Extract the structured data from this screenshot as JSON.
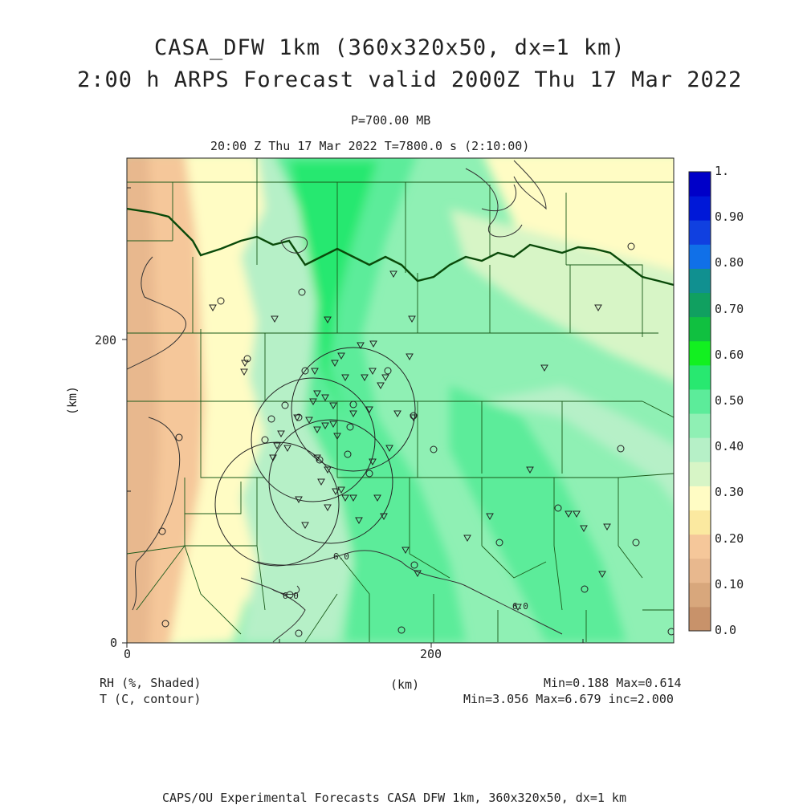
{
  "title_line1": "CASA_DFW 1km (360x320x50, dx=1 km)",
  "title_line2": "2:00 h ARPS Forecast valid 2000Z Thu 17 Mar 2022",
  "level": "P=700.00 MB",
  "time_line": "20:00 Z Thu 17 Mar 2022   T=7800.0 s (2:10:00)",
  "axis": {
    "y_label": "(km)",
    "x_label": "(km)",
    "x_ticks": [
      "0",
      "200"
    ],
    "y_ticks": [
      "0",
      "200"
    ]
  },
  "colorbar": {
    "labels": [
      "1.",
      "0.90",
      "0.80",
      "0.70",
      "0.60",
      "0.50",
      "0.40",
      "0.30",
      "0.20",
      "0.10",
      "0.0"
    ],
    "colors": [
      "#c8926a",
      "#d8a77c",
      "#e8b88e",
      "#f5c79a",
      "#fbe9a0",
      "#fffcc4",
      "#d7f5c6",
      "#b6f0c7",
      "#8ff0b4",
      "#5cec9a",
      "#28e870",
      "#12f020",
      "#10c040",
      "#10a060",
      "#109090",
      "#1070e8",
      "#1040e0",
      "#0018d8",
      "#0000c8"
    ]
  },
  "legend": {
    "rh": "RH (%, Shaded)",
    "t": "T (C, contour)",
    "rh_stats": "Min=0.188 Max=0.614",
    "t_stats": "Min=3.056 Max=6.679 inc=2.000"
  },
  "contour_labels": [
    "6.0",
    "6.0",
    "6.0"
  ],
  "footer": "CAPS/OU Experimental Forecasts  CASA DFW 1km, 360x320x50, dx=1 km",
  "radar_rings_count": 4
}
